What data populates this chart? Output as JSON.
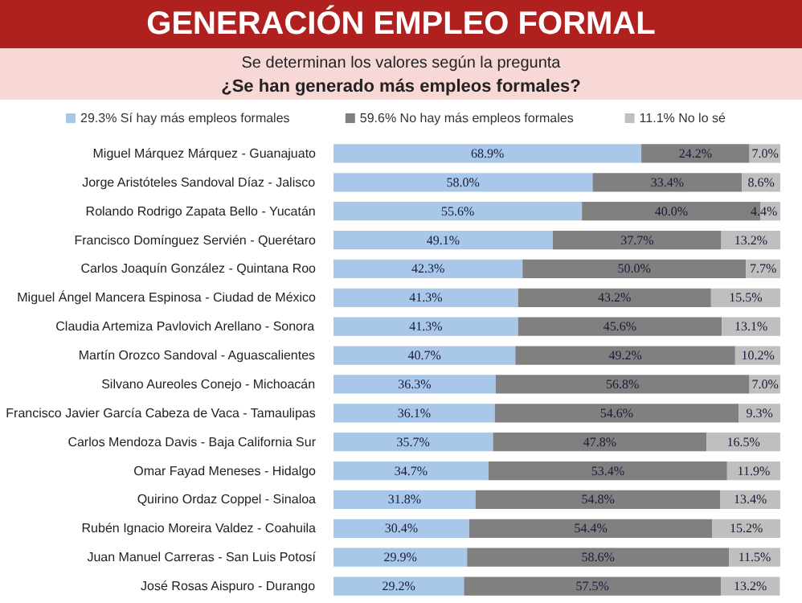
{
  "chart_data": {
    "type": "bar",
    "orientation": "horizontal",
    "stacked": true,
    "title": "GENERACIÓN EMPLEO FORMAL",
    "subtitle": "Se determinan los valores según la pregunta",
    "annotations": [
      "¿Se han generado más empleos formales?"
    ],
    "categories": [
      "Miguel Márquez Márquez - Guanajuato",
      "Jorge Aristóteles Sandoval Díaz - Jalisco",
      "Rolando Rodrigo Zapata Bello - Yucatán",
      "Francisco Domínguez Servién - Querétaro",
      "Carlos Joaquín González - Quintana Roo",
      "Miguel Ángel Mancera Espinosa - Ciudad de México",
      "Claudia Artemiza Pavlovich Arellano - Sonora",
      "Martín Orozco Sandoval - Aguascalientes",
      "Silvano Aureoles Conejo - Michoacán",
      "Francisco Javier García Cabeza de Vaca - Tamaulipas",
      "Carlos Mendoza Davis - Baja California Sur",
      "Omar Fayad Meneses - Hidalgo",
      "Quirino Ordaz Coppel - Sinaloa",
      "Rubén Ignacio Moreira Valdez - Coahuila",
      "Juan Manuel Carreras - San Luis Potosí",
      "José Rosas Aispuro - Durango"
    ],
    "series": [
      {
        "name": "29.3% Sí hay más empleos formales",
        "color": "#a9c7e8",
        "values": [
          68.9,
          58.0,
          55.6,
          49.1,
          42.3,
          41.3,
          41.3,
          40.7,
          36.3,
          36.1,
          35.7,
          34.7,
          31.8,
          30.4,
          29.9,
          29.2
        ],
        "value_labels": [
          "68.9%",
          "58.0%",
          "55.6%",
          "49.1%",
          "42.3%",
          "41.3%",
          "41.3%",
          "40.7%",
          "36.3%",
          "36.1%",
          "35.7%",
          "34.7%",
          "31.8%",
          "30.4%",
          "29.9%",
          "29.2%"
        ]
      },
      {
        "name": "59.6% No hay más empleos formales",
        "color": "#808080",
        "values": [
          24.2,
          33.4,
          40.0,
          37.7,
          50.0,
          43.2,
          45.6,
          49.2,
          56.8,
          54.6,
          47.8,
          53.4,
          54.8,
          54.4,
          58.6,
          57.5
        ],
        "value_labels": [
          "24.2%",
          "33.4%",
          "40.0%",
          "37.7%",
          "50.0%",
          "43.2%",
          "45.6%",
          "49.2%",
          "56.8%",
          "54.6%",
          "47.8%",
          "53.4%",
          "54.8%",
          "54.4%",
          "58.6%",
          "57.5%"
        ]
      },
      {
        "name": "11.1% No lo sé",
        "color": "#bfbfbf",
        "values": [
          7.0,
          8.6,
          4.4,
          13.2,
          7.7,
          15.5,
          13.1,
          10.2,
          7.0,
          9.3,
          16.5,
          11.9,
          13.4,
          15.2,
          11.5,
          13.2
        ],
        "value_labels": [
          "7.0%",
          "8.6%",
          "4.4%",
          "13.2%",
          "7.7%",
          "15.5%",
          "13.1%",
          "10.2%",
          "7.0%",
          "9.3%",
          "16.5%",
          "11.9%",
          "13.4%",
          "15.2%",
          "11.5%",
          "13.2%"
        ]
      }
    ],
    "xlim": [
      0,
      100
    ],
    "tick_labels": "y",
    "grid": false,
    "legend": "top"
  }
}
